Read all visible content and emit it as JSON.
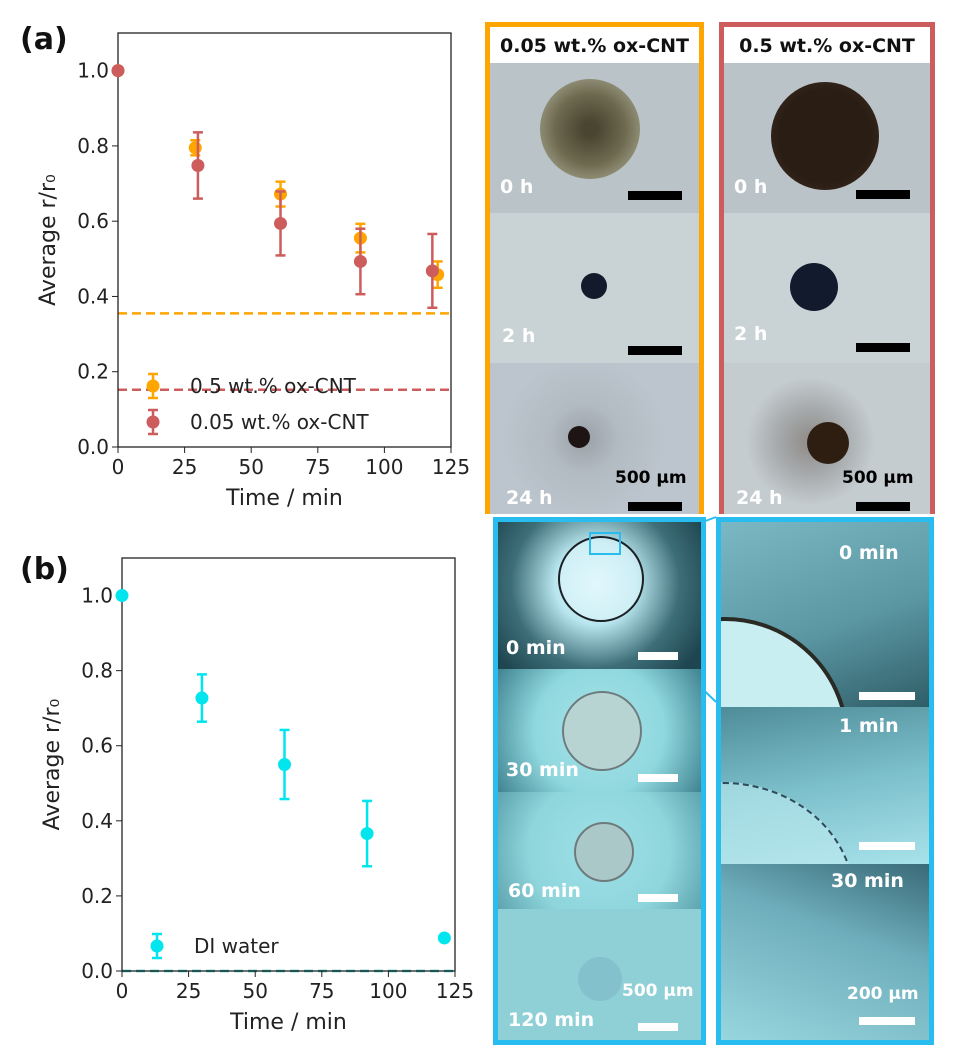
{
  "panel_a_label": "(a)",
  "panel_b_label": "(b)",
  "colors": {
    "orange": "#FFA500",
    "red": "#CD5C5C",
    "cyan": "#00E5EE",
    "box_blue": "#29BDEF"
  },
  "chart_data": [
    {
      "type": "scatter",
      "title": "",
      "xlabel": "Time / min",
      "ylabel": "Average r/r₀",
      "xlim": [
        0,
        125
      ],
      "ylim": [
        0,
        1.1
      ],
      "xticks": [
        "0",
        "25",
        "50",
        "75",
        "100",
        "125"
      ],
      "yticks": [
        "0.0",
        "0.2",
        "0.4",
        "0.6",
        "0.8",
        "1.0"
      ],
      "legend_placement": "lower-left",
      "series": [
        {
          "name": "0.5 wt.% ox-CNT",
          "color": "#FFA500",
          "x": [
            0,
            29,
            61,
            91,
            120
          ],
          "y": [
            1.0,
            0.795,
            0.672,
            0.555,
            0.458
          ],
          "err": [
            0,
            0.02,
            0.033,
            0.038,
            0.035
          ]
        },
        {
          "name": "0.05 wt.% ox-CNT",
          "color": "#CD5C5C",
          "x": [
            0,
            30,
            61,
            91,
            118
          ],
          "y": [
            1.0,
            0.748,
            0.594,
            0.493,
            0.468
          ],
          "err": [
            0,
            0.088,
            0.085,
            0.087,
            0.098
          ]
        }
      ],
      "hlines": [
        {
          "y": 0.355,
          "color": "#FFA500"
        },
        {
          "y": 0.152,
          "color": "#CD5C5C"
        }
      ]
    },
    {
      "type": "scatter",
      "title": "",
      "xlabel": "Time / min",
      "ylabel": "Average r/r₀",
      "xlim": [
        0,
        125
      ],
      "ylim": [
        0,
        1.1
      ],
      "xticks": [
        "0",
        "25",
        "50",
        "75",
        "100",
        "125"
      ],
      "yticks": [
        "0.0",
        "0.2",
        "0.4",
        "0.6",
        "0.8",
        "1.0"
      ],
      "legend_placement": "lower-left",
      "series": [
        {
          "name": "DI water",
          "color": "#00E5EE",
          "x": [
            0,
            30,
            61,
            92,
            121
          ],
          "y": [
            1.0,
            0.727,
            0.55,
            0.366,
            0.088
          ],
          "err": [
            0,
            0.063,
            0.092,
            0.087,
            0
          ]
        }
      ],
      "hlines": [
        {
          "y": 0.0,
          "color": "#20B2AA"
        }
      ]
    }
  ],
  "images_a": {
    "left": {
      "title": "0.05 wt.% ox-CNT",
      "times": [
        "0 h",
        "2 h",
        "24 h"
      ],
      "scale": "500 µm"
    },
    "right": {
      "title": "0.5 wt.% ox-CNT",
      "times": [
        "0 h",
        "2 h",
        "24 h"
      ],
      "scale": "500 µm"
    }
  },
  "images_b": {
    "left": {
      "times": [
        "0 min",
        "30 min",
        "60 min",
        "120 min"
      ],
      "scale": "500 µm"
    },
    "right": {
      "times": [
        "0 min",
        "1 min",
        "30 min"
      ],
      "scale": "200 µm"
    }
  }
}
